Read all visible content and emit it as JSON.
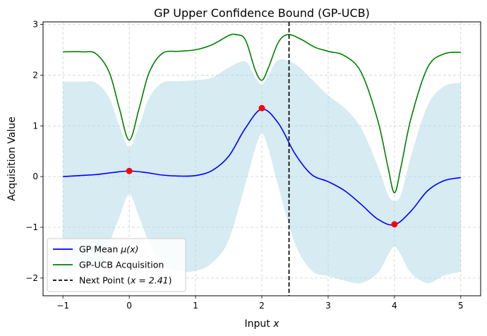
{
  "chart_data": {
    "type": "line",
    "title": "GP Upper Confidence Bound (GP-UCB)",
    "xlabel": "Input x",
    "ylabel": "Acquisition Value",
    "xlim": [
      -1.3,
      5.3
    ],
    "ylim": [
      -2.35,
      3.05
    ],
    "grid": true,
    "legend_placement": "lower-left",
    "xticks": [
      -1,
      0,
      1,
      2,
      3,
      4,
      5
    ],
    "yticks": [
      -2,
      -1,
      0,
      1,
      2,
      3
    ],
    "series": [
      {
        "name": "GP Mean μ(x)",
        "color": "#0000ff",
        "kind": "line",
        "x": [
          -1.0,
          -0.5,
          -0.25,
          0.0,
          0.25,
          0.5,
          0.75,
          1.0,
          1.25,
          1.5,
          1.75,
          2.0,
          2.25,
          2.5,
          2.75,
          3.0,
          3.25,
          3.5,
          3.75,
          4.0,
          4.25,
          4.5,
          4.75,
          5.0
        ],
        "y": [
          0.0,
          0.04,
          0.08,
          0.11,
          0.08,
          0.03,
          0.01,
          0.02,
          0.12,
          0.4,
          0.95,
          1.33,
          1.05,
          0.45,
          0.04,
          -0.1,
          -0.28,
          -0.55,
          -0.84,
          -0.95,
          -0.68,
          -0.28,
          -0.08,
          -0.02
        ]
      },
      {
        "name": "GP-UCB Acquisition",
        "color": "#008000",
        "kind": "line",
        "x": [
          -1.0,
          -0.7,
          -0.5,
          -0.3,
          -0.15,
          0.0,
          0.15,
          0.3,
          0.5,
          0.75,
          1.0,
          1.25,
          1.5,
          1.6,
          1.75,
          1.9,
          2.0,
          2.1,
          2.25,
          2.4,
          2.6,
          2.8,
          3.0,
          3.25,
          3.5,
          3.75,
          3.9,
          4.0,
          4.1,
          4.25,
          4.5,
          4.75,
          5.0
        ],
        "y": [
          2.46,
          2.46,
          2.42,
          2.05,
          1.35,
          0.72,
          1.35,
          2.05,
          2.43,
          2.47,
          2.5,
          2.6,
          2.78,
          2.8,
          2.7,
          2.1,
          1.9,
          2.15,
          2.65,
          2.8,
          2.7,
          2.55,
          2.47,
          2.38,
          2.05,
          1.1,
          0.2,
          -0.32,
          0.2,
          1.15,
          2.15,
          2.42,
          2.45
        ]
      },
      {
        "name": "confidence band",
        "color": "#add8e6",
        "kind": "band",
        "x": [
          -1.0,
          -0.7,
          -0.5,
          -0.3,
          -0.15,
          0.0,
          0.15,
          0.3,
          0.5,
          0.75,
          1.0,
          1.25,
          1.5,
          1.75,
          1.9,
          2.0,
          2.1,
          2.25,
          2.5,
          2.75,
          3.0,
          3.25,
          3.5,
          3.75,
          3.9,
          4.0,
          4.1,
          4.25,
          4.5,
          4.75,
          5.0
        ],
        "y_upper": [
          1.87,
          1.87,
          1.85,
          1.55,
          1.0,
          0.58,
          1.0,
          1.55,
          1.85,
          1.88,
          1.9,
          1.95,
          2.15,
          2.27,
          1.95,
          1.82,
          2.0,
          2.3,
          2.22,
          1.92,
          1.6,
          1.35,
          0.95,
          0.2,
          -0.35,
          -0.48,
          -0.35,
          0.4,
          1.4,
          1.78,
          1.85
        ],
        "y_lower": [
          -1.87,
          -1.85,
          -1.78,
          -1.3,
          -0.8,
          -0.35,
          -0.8,
          -1.3,
          -1.73,
          -1.86,
          -1.86,
          -1.7,
          -1.25,
          -0.15,
          0.55,
          0.85,
          0.55,
          -0.2,
          -1.32,
          -1.85,
          -1.96,
          -2.05,
          -2.1,
          -1.9,
          -1.55,
          -1.38,
          -1.55,
          -1.9,
          -2.1,
          -1.95,
          -1.88
        ]
      }
    ],
    "observed_points": {
      "color": "#ff0000",
      "x": [
        0.0,
        2.0,
        4.0
      ],
      "y": [
        0.11,
        1.35,
        -0.94
      ]
    },
    "next_point": {
      "name": "Next Point (x = 2.41)",
      "x": 2.41,
      "color": "#000000"
    },
    "legend": [
      {
        "label_text": "GP Mean ",
        "label_math": "μ(x)",
        "color": "#0000ff",
        "style": "solid"
      },
      {
        "label_text": "GP-UCB Acquisition",
        "label_math": "",
        "color": "#008000",
        "style": "solid"
      },
      {
        "label_text": "Next Point (",
        "label_math": "x = 2.41",
        "label_tail": ")",
        "color": "#000000",
        "style": "dashed"
      }
    ]
  }
}
